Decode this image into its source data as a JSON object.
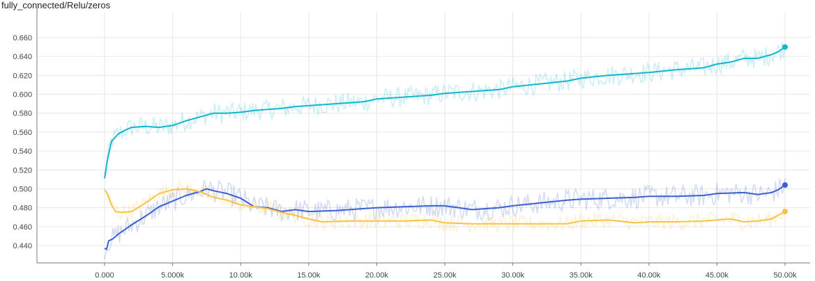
{
  "title": "fully_connected/Relu/zeros",
  "chart_data": {
    "type": "line",
    "title": "fully_connected/Relu/zeros",
    "xlabel": "",
    "ylabel": "",
    "xlim": [
      -5000,
      51500
    ],
    "ylim": [
      0.425,
      0.667
    ],
    "x_ticks": [
      0,
      5000,
      10000,
      15000,
      20000,
      25000,
      30000,
      35000,
      40000,
      45000,
      50000
    ],
    "x_tick_labels": [
      "0.000",
      "5.000k",
      "10.00k",
      "15.00k",
      "20.00k",
      "25.00k",
      "30.00k",
      "35.00k",
      "40.00k",
      "45.00k",
      "50.00k"
    ],
    "y_ticks": [
      0.44,
      0.46,
      0.48,
      0.5,
      0.52,
      0.54,
      0.56,
      0.58,
      0.6,
      0.62,
      0.64,
      0.66
    ],
    "y_tick_labels": [
      "0.440",
      "0.460",
      "0.480",
      "0.500",
      "0.520",
      "0.540",
      "0.560",
      "0.580",
      "0.600",
      "0.620",
      "0.640",
      "0.660"
    ],
    "grid": true,
    "series": [
      {
        "color": "#12b5cb",
        "x": [
          0,
          200,
          500,
          1000,
          1500,
          2000,
          3000,
          4000,
          5000,
          6000,
          7000,
          8000,
          9000,
          10000,
          11000,
          12000,
          13000,
          14000,
          15000,
          17000,
          19000,
          20000,
          22000,
          24000,
          25000,
          27000,
          29000,
          30000,
          32000,
          34000,
          35000,
          37000,
          39000,
          40000,
          42000,
          44000,
          45000,
          46000,
          47000,
          48000,
          49000,
          49500,
          50000
        ],
        "values": [
          0.511,
          0.53,
          0.55,
          0.558,
          0.562,
          0.565,
          0.566,
          0.565,
          0.567,
          0.572,
          0.576,
          0.58,
          0.58,
          0.581,
          0.583,
          0.584,
          0.585,
          0.587,
          0.588,
          0.59,
          0.592,
          0.595,
          0.597,
          0.599,
          0.601,
          0.603,
          0.605,
          0.608,
          0.611,
          0.614,
          0.617,
          0.62,
          0.622,
          0.623,
          0.626,
          0.628,
          0.632,
          0.634,
          0.638,
          0.638,
          0.642,
          0.645,
          0.65
        ]
      },
      {
        "color": "#3b5fcf",
        "x": [
          0,
          150,
          300,
          600,
          1000,
          1500,
          2000,
          3000,
          4000,
          5000,
          6000,
          7000,
          7500,
          8000,
          9000,
          10000,
          11000,
          12000,
          13000,
          14000,
          15000,
          17000,
          19000,
          20000,
          22000,
          24000,
          25000,
          27000,
          29000,
          30000,
          32000,
          34000,
          35000,
          37000,
          39000,
          40000,
          42000,
          44000,
          45000,
          47000,
          48000,
          49000,
          49500,
          50000
        ],
        "values": [
          0.437,
          0.436,
          0.445,
          0.447,
          0.452,
          0.457,
          0.462,
          0.471,
          0.481,
          0.487,
          0.493,
          0.497,
          0.5,
          0.498,
          0.495,
          0.49,
          0.481,
          0.48,
          0.476,
          0.478,
          0.476,
          0.477,
          0.479,
          0.48,
          0.481,
          0.482,
          0.482,
          0.478,
          0.48,
          0.482,
          0.485,
          0.488,
          0.489,
          0.49,
          0.491,
          0.492,
          0.492,
          0.493,
          0.495,
          0.496,
          0.494,
          0.496,
          0.499,
          0.504
        ]
      },
      {
        "color": "#f8c245",
        "x": [
          0,
          200,
          500,
          800,
          1200,
          2000,
          3000,
          4000,
          5000,
          6000,
          7000,
          8000,
          9000,
          10000,
          11000,
          12000,
          13000,
          14000,
          15000,
          16000,
          18000,
          20000,
          22000,
          24000,
          25000,
          27000,
          29000,
          30000,
          32000,
          34000,
          35000,
          37000,
          39000,
          40000,
          42000,
          44000,
          45000,
          46000,
          47000,
          48000,
          49000,
          49500,
          50000
        ],
        "values": [
          0.499,
          0.495,
          0.483,
          0.476,
          0.475,
          0.476,
          0.485,
          0.495,
          0.499,
          0.5,
          0.497,
          0.491,
          0.488,
          0.483,
          0.481,
          0.479,
          0.475,
          0.472,
          0.468,
          0.465,
          0.466,
          0.466,
          0.466,
          0.467,
          0.464,
          0.463,
          0.463,
          0.463,
          0.463,
          0.463,
          0.466,
          0.467,
          0.464,
          0.465,
          0.465,
          0.466,
          0.467,
          0.468,
          0.465,
          0.466,
          0.468,
          0.472,
          0.476
        ]
      }
    ]
  }
}
